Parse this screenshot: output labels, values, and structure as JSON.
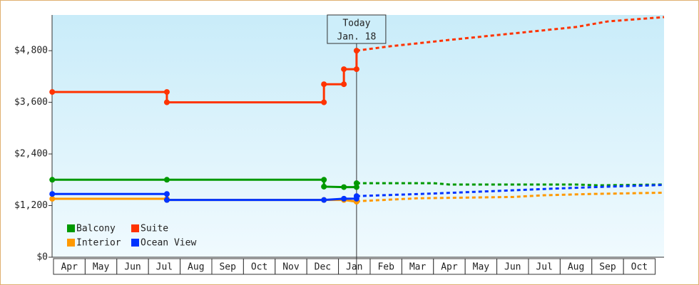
{
  "chart_data": {
    "type": "line",
    "categories": [
      "Apr",
      "May",
      "Jun",
      "Jul",
      "Aug",
      "Sep",
      "Oct",
      "Nov",
      "Dec",
      "Jan",
      "Feb",
      "Mar",
      "Apr",
      "May",
      "Jun",
      "Jul",
      "Aug",
      "Sep",
      "Oct"
    ],
    "xlim": [
      -0.045,
      19.28
    ],
    "ylim": [
      0,
      5630
    ],
    "yticks": [
      {
        "value": 0,
        "label": "$0"
      },
      {
        "value": 1200,
        "label": "$1,200"
      },
      {
        "value": 2400,
        "label": "$2,400"
      },
      {
        "value": 3600,
        "label": "$3,600"
      },
      {
        "value": 4800,
        "label": "$4,800"
      }
    ],
    "today": {
      "x": 9.57,
      "label": [
        "Today",
        "Jan. 18"
      ]
    },
    "series": [
      {
        "name": "Balcony",
        "color": "#009900",
        "x": [
          -0.04,
          3.58,
          8.54,
          8.54,
          9.17,
          9.57,
          9.57
        ],
        "values": [
          1800,
          1800,
          1800,
          1640,
          1630,
          1630,
          1720
        ],
        "forecast_x": [
          9.57,
          12.0,
          12.5,
          16.5,
          17.2,
          19.28
        ],
        "forecast_values": [
          1720,
          1720,
          1690,
          1690,
          1670,
          1690
        ]
      },
      {
        "name": "Suite",
        "color": "#ff3300",
        "x": [
          -0.04,
          3.58,
          3.58,
          8.54,
          8.54,
          9.17,
          9.17,
          9.57,
          9.57
        ],
        "values": [
          3840,
          3840,
          3600,
          3600,
          4020,
          4020,
          4370,
          4370,
          4800
        ],
        "forecast_x": [
          9.57,
          10.6,
          12.5,
          14.5,
          16.5,
          17.5,
          19.28
        ],
        "forecast_values": [
          4800,
          4900,
          5050,
          5200,
          5350,
          5480,
          5580
        ]
      },
      {
        "name": "Interior",
        "color": "#ff9900",
        "x": [
          -0.04,
          3.58,
          3.58,
          8.54,
          9.17,
          9.57,
          9.57
        ],
        "values": [
          1357,
          1357,
          1330,
          1330,
          1330,
          1290,
          1300
        ],
        "forecast_x": [
          9.57,
          11.5,
          14.5,
          15.5,
          17.0,
          19.28
        ],
        "forecast_values": [
          1300,
          1370,
          1400,
          1440,
          1470,
          1500
        ]
      },
      {
        "name": "Ocean View",
        "color": "#0033ff",
        "x": [
          -0.04,
          3.58,
          3.58,
          8.54,
          9.17,
          9.57,
          9.57
        ],
        "values": [
          1470,
          1470,
          1330,
          1330,
          1360,
          1360,
          1420
        ],
        "forecast_x": [
          9.57,
          12.0,
          14.0,
          16.0,
          17.5,
          19.28
        ],
        "forecast_values": [
          1420,
          1480,
          1540,
          1600,
          1640,
          1680
        ]
      }
    ]
  }
}
